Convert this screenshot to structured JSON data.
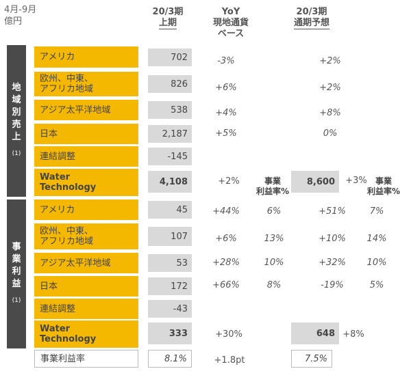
{
  "unit": [
    "4月-9月",
    "億円"
  ],
  "headers": {
    "h1": [
      "20/3期",
      "上期"
    ],
    "h2": [
      "YoY",
      "現地通貨",
      "ベース"
    ],
    "h3": [
      "20/3期",
      "通期予想"
    ],
    "margin": [
      "事業",
      "利益率%"
    ]
  },
  "sections": {
    "sales": [
      "地",
      "域",
      "別",
      "売",
      "上"
    ],
    "profit": [
      "事",
      "業",
      "利",
      "益"
    ],
    "note": "(1)"
  },
  "sales": [
    {
      "label": [
        "アメリカ"
      ],
      "h1": "702",
      "yoy": "-3%",
      "fy": "+2%"
    },
    {
      "label": [
        "欧州、中東、",
        "アフリカ地域"
      ],
      "h1": "826",
      "yoy": "+6%",
      "fy": "+2%"
    },
    {
      "label": [
        "アジア太平洋地域"
      ],
      "h1": "538",
      "yoy": "+4%",
      "fy": "+8%"
    },
    {
      "label": [
        "日本"
      ],
      "h1": "2,187",
      "yoy": "+5%",
      "fy": "0%"
    },
    {
      "label": [
        "連結調整"
      ],
      "h1": "-145",
      "yoy": "",
      "fy": ""
    },
    {
      "label": [
        "Water",
        "Technology"
      ],
      "h1": "4,108",
      "yoy": "+2%",
      "fy_val": "8,600",
      "fy": "+3%"
    }
  ],
  "profit": [
    {
      "label": [
        "アメリカ"
      ],
      "h1": "45",
      "yoy": "+44%",
      "m1": "6%",
      "fy": "+51%",
      "m2": "7%"
    },
    {
      "label": [
        "欧州、中東、",
        "アフリカ地域"
      ],
      "h1": "107",
      "yoy": "+6%",
      "m1": "13%",
      "fy": "+10%",
      "m2": "14%"
    },
    {
      "label": [
        "アジア太平洋地域"
      ],
      "h1": "53",
      "yoy": "+28%",
      "m1": "10%",
      "fy": "+32%",
      "m2": "10%"
    },
    {
      "label": [
        "日本"
      ],
      "h1": "172",
      "yoy": "+66%",
      "m1": "8%",
      "fy": "-19%",
      "m2": "5%"
    },
    {
      "label": [
        "連結調整"
      ],
      "h1": "-43",
      "yoy": "",
      "m1": "",
      "fy": "",
      "m2": ""
    },
    {
      "label": [
        "Water",
        "Technology"
      ],
      "h1": "333",
      "yoy": "+30%",
      "fy_val": "648",
      "fy": "+8%"
    }
  ],
  "margin_row": {
    "label": "事業利益率",
    "h1": "8.1%",
    "yoy": "+1.8pt",
    "fy": "7.5%"
  }
}
